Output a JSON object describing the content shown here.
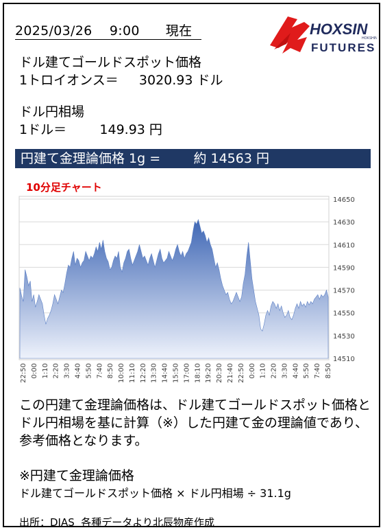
{
  "header": {
    "date_line": "2025/03/26    9:00      現在",
    "logo_text": "HOXSIN",
    "logo_sub": "FUTURES",
    "logo_small": "HOKSHIN"
  },
  "gold": {
    "label": "ドル建てゴールドスポット価格",
    "line": "1トロイオンス＝     3020.93 ドル"
  },
  "usdjpy": {
    "label": "ドル円相場",
    "line": "1ドル＝        149.93 円"
  },
  "banner": {
    "text": "円建て金理論価格 1g =        約 14563 円"
  },
  "chart_title": "10分足チャート",
  "description": "この円建て金理論価格は、ドル建てゴールドスポット価格とドル円相場を基に計算（※）した円建て金の理論値であり、参考価格となります。",
  "formula": {
    "heading": "※円建て金理論価格",
    "text": "ドル建てゴールドスポット価格 × ドル円相場 ÷ 31.1g"
  },
  "source": "出所：DIAS  各種データより北辰物産作成",
  "colors": {
    "banner": "#1f3864",
    "chart_title": "#e00000",
    "area_top": "#3f67b5",
    "area_bottom": "#eef2fb",
    "logo_red": "#e01b1b",
    "logo_navy": "#1f2a5c"
  },
  "chart_data": {
    "type": "area",
    "title": "10分足チャート",
    "ylim": [
      14510,
      14650
    ],
    "yticks": [
      14510,
      14530,
      14550,
      14570,
      14590,
      14610,
      14630,
      14650
    ],
    "xticks": [
      "22:50",
      "0:00",
      "1:10",
      "2:20",
      "3:30",
      "4:40",
      "5:50",
      "7:40",
      "8:50",
      "10:00",
      "11:10",
      "12:20",
      "13:30",
      "14:40",
      "15:50",
      "17:00",
      "18:10",
      "19:20",
      "20:30",
      "21:40",
      "22:50",
      "0:00",
      "1:10",
      "2:20",
      "3:30",
      "4:40",
      "5:50",
      "7:40",
      "8:50"
    ],
    "grid": true,
    "values": [
      14572,
      14565,
      14560,
      14588,
      14582,
      14574,
      14578,
      14560,
      14566,
      14555,
      14560,
      14566,
      14562,
      14558,
      14548,
      14540,
      14545,
      14548,
      14552,
      14558,
      14566,
      14562,
      14558,
      14564,
      14570,
      14568,
      14576,
      14585,
      14592,
      14590,
      14598,
      14604,
      14592,
      14598,
      14596,
      14590,
      14594,
      14596,
      14604,
      14600,
      14596,
      14600,
      14598,
      14602,
      14608,
      14604,
      14612,
      14606,
      14614,
      14604,
      14598,
      14595,
      14588,
      14590,
      14596,
      14600,
      14598,
      14604,
      14590,
      14586,
      14594,
      14598,
      14604,
      14606,
      14598,
      14592,
      14596,
      14600,
      14604,
      14610,
      14604,
      14598,
      14600,
      14596,
      14592,
      14598,
      14602,
      14596,
      14590,
      14596,
      14602,
      14606,
      14598,
      14594,
      14596,
      14598,
      14604,
      14600,
      14596,
      14600,
      14606,
      14610,
      14604,
      14600,
      14604,
      14598,
      14602,
      14604,
      14608,
      14612,
      14622,
      14630,
      14628,
      14632,
      14626,
      14620,
      14622,
      14618,
      14612,
      14616,
      14610,
      14606,
      14598,
      14590,
      14594,
      14588,
      14580,
      14574,
      14570,
      14566,
      14568,
      14562,
      14558,
      14560,
      14564,
      14568,
      14564,
      14560,
      14564,
      14576,
      14584,
      14600,
      14612,
      14596,
      14580,
      14570,
      14560,
      14554,
      14548,
      14536,
      14534,
      14540,
      14548,
      14552,
      14548,
      14556,
      14560,
      14558,
      14554,
      14558,
      14552,
      14556,
      14550,
      14546,
      14548,
      14552,
      14546,
      14544,
      14548,
      14554,
      14558,
      14554,
      14560,
      14556,
      14558,
      14555,
      14560,
      14557,
      14560,
      14558,
      14562,
      14564,
      14566,
      14562,
      14566,
      14564,
      14566,
      14570,
      14564
    ]
  }
}
